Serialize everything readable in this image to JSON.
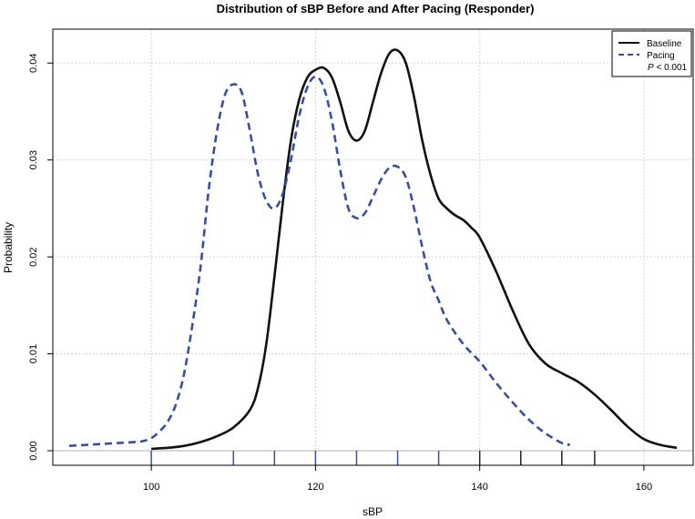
{
  "chart_data": {
    "type": "line",
    "title": "Distribution of sBP Before and After Pacing (Responder)",
    "xlabel": "sBP",
    "ylabel": "Probability",
    "xlim": [
      88,
      166
    ],
    "ylim": [
      -0.0015,
      0.0435
    ],
    "x_ticks": [
      100,
      120,
      140,
      160
    ],
    "y_ticks": [
      0.0,
      0.01,
      0.02,
      0.03,
      0.04
    ],
    "x_tick_labels": [
      "100",
      "120",
      "140",
      "160"
    ],
    "y_tick_labels": [
      "0.00",
      "0.01",
      "0.02",
      "0.03",
      "0.04"
    ],
    "grid": true,
    "baseline_at_zero": true,
    "legend_position": "top-right",
    "rug": [
      100,
      110,
      115,
      120,
      125,
      130,
      135,
      140,
      145,
      150,
      154
    ],
    "series": [
      {
        "name": "Baseline",
        "style": "solid",
        "color": "#111111",
        "x": [
          100,
          102,
          104,
          106,
          108,
          110,
          112,
          113,
          114,
          115,
          116,
          117,
          118,
          119,
          120,
          121,
          122,
          123,
          124,
          125,
          126,
          127,
          128,
          129,
          130,
          131,
          132,
          133,
          134,
          135,
          136,
          137,
          138,
          139,
          140,
          142,
          144,
          146,
          148,
          150,
          152,
          154,
          156,
          158,
          160,
          162,
          164
        ],
        "y": [
          0.0002,
          0.0003,
          0.0005,
          0.0009,
          0.0015,
          0.0024,
          0.0042,
          0.0065,
          0.011,
          0.018,
          0.0255,
          0.032,
          0.0362,
          0.0385,
          0.0393,
          0.0395,
          0.0385,
          0.036,
          0.033,
          0.032,
          0.033,
          0.036,
          0.039,
          0.041,
          0.0413,
          0.04,
          0.0365,
          0.032,
          0.0285,
          0.026,
          0.025,
          0.0243,
          0.0238,
          0.023,
          0.022,
          0.0185,
          0.0145,
          0.011,
          0.009,
          0.008,
          0.0071,
          0.0058,
          0.0042,
          0.0025,
          0.0012,
          0.0006,
          0.0003
        ]
      },
      {
        "name": "Pacing",
        "style": "dashed",
        "color": "#3a4ea1",
        "x": [
          90,
          92,
          94,
          96,
          98,
          99,
          100,
          101,
          102,
          103,
          104,
          105,
          106,
          107,
          108,
          109,
          110,
          111,
          112,
          113,
          114,
          115,
          116,
          117,
          118,
          119,
          120,
          121,
          122,
          123,
          124,
          125,
          126,
          127,
          128,
          129,
          130,
          131,
          132,
          133,
          134,
          135,
          136,
          138,
          140,
          142,
          144,
          146,
          148,
          150,
          151
        ],
        "y": [
          0.0005,
          0.0006,
          0.0007,
          0.0008,
          0.0009,
          0.001,
          0.0013,
          0.002,
          0.003,
          0.0048,
          0.008,
          0.013,
          0.019,
          0.027,
          0.033,
          0.0368,
          0.0378,
          0.037,
          0.033,
          0.0285,
          0.0258,
          0.025,
          0.0265,
          0.03,
          0.0345,
          0.0375,
          0.0386,
          0.0375,
          0.034,
          0.029,
          0.025,
          0.024,
          0.0245,
          0.0262,
          0.028,
          0.0292,
          0.0293,
          0.0282,
          0.025,
          0.021,
          0.0175,
          0.0155,
          0.0135,
          0.011,
          0.0092,
          0.007,
          0.005,
          0.0032,
          0.0018,
          0.0008,
          0.0006
        ]
      }
    ],
    "annotation": {
      "prefix": "P",
      "text": " < 0.001"
    }
  }
}
